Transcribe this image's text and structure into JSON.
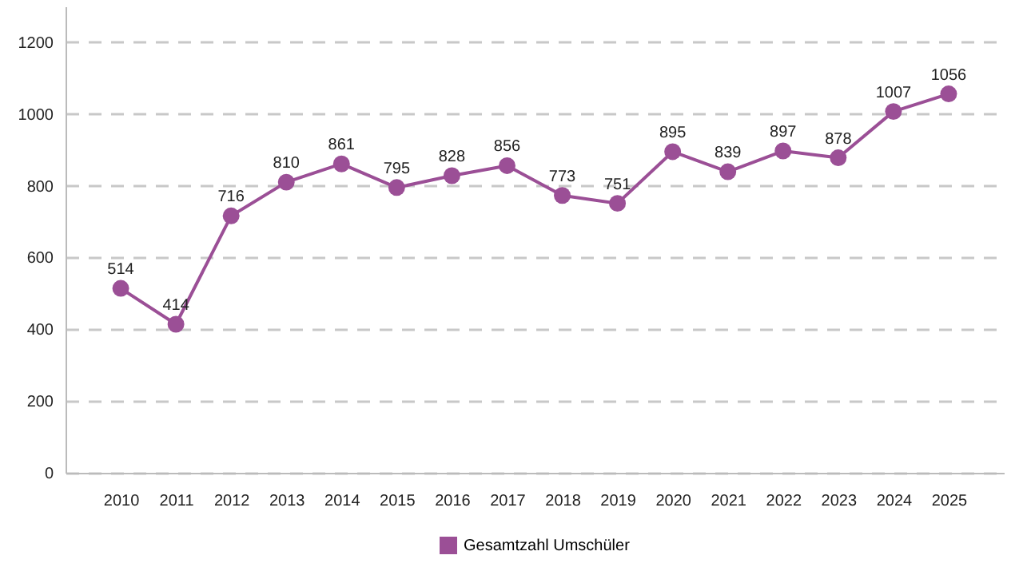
{
  "chart_data": {
    "type": "line",
    "categories": [
      "2010",
      "2011",
      "2012",
      "2013",
      "2014",
      "2015",
      "2016",
      "2017",
      "2018",
      "2019",
      "2020",
      "2021",
      "2022",
      "2023",
      "2024",
      "2025"
    ],
    "series": [
      {
        "name": "Gesamtzahl Umschüler",
        "color": "#9b4f96",
        "values": [
          514,
          414,
          716,
          810,
          861,
          795,
          828,
          856,
          773,
          751,
          895,
          839,
          897,
          878,
          1007,
          1056
        ]
      }
    ],
    "ylim": [
      0,
      1300
    ],
    "yticks": [
      0,
      200,
      400,
      600,
      800,
      1000,
      1200
    ],
    "grid": "y",
    "legend": "bottom",
    "marker": "circle",
    "line_style": "solid",
    "data_labels": true
  }
}
